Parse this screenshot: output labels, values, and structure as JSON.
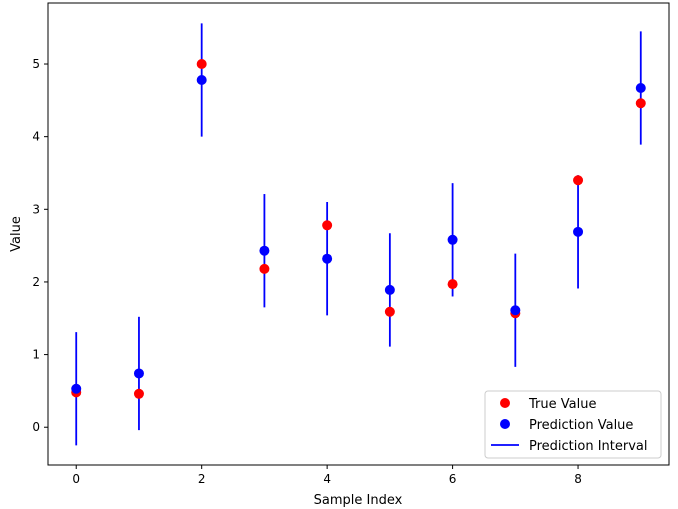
{
  "chart_data": {
    "type": "scatter",
    "title": "",
    "xlabel": "Sample Index",
    "ylabel": "Value",
    "xlim": [
      -0.45,
      9.45
    ],
    "ylim": [
      -0.52,
      5.84
    ],
    "xticks": [
      0,
      2,
      4,
      6,
      8
    ],
    "yticks": [
      0,
      1,
      2,
      3,
      4,
      5
    ],
    "x": [
      0,
      1,
      2,
      3,
      4,
      5,
      6,
      7,
      8,
      9
    ],
    "series": [
      {
        "name": "True Value",
        "kind": "scatter",
        "color": "#ff0000",
        "values": [
          0.48,
          0.46,
          5.0,
          2.18,
          2.78,
          1.59,
          1.97,
          1.57,
          3.4,
          4.46
        ]
      },
      {
        "name": "Prediction Value",
        "kind": "scatter",
        "color": "#0000ff",
        "values": [
          0.53,
          0.74,
          4.78,
          2.43,
          2.32,
          1.89,
          2.58,
          1.61,
          2.69,
          4.67
        ]
      },
      {
        "name": "Prediction Interval",
        "kind": "vlines",
        "color": "#0000ff",
        "lower": [
          -0.25,
          -0.04,
          4.0,
          1.65,
          1.54,
          1.11,
          1.8,
          0.83,
          1.91,
          3.89
        ],
        "upper": [
          1.31,
          1.52,
          5.56,
          3.21,
          3.1,
          2.67,
          3.36,
          2.39,
          3.47,
          5.45
        ]
      }
    ],
    "legend": {
      "placement": "lower-right",
      "entries": [
        "True Value",
        "Prediction Value",
        "Prediction Interval"
      ]
    },
    "grid": false
  }
}
